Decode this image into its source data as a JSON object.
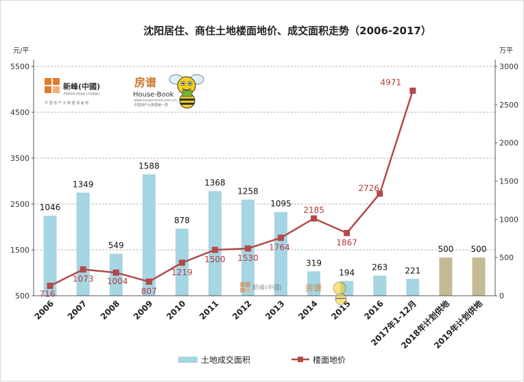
{
  "colors": {
    "bar": "#a6d5e3",
    "bar_plan": "#c4bb95",
    "line": "#b2494a",
    "line_label": "#b03a3a",
    "grid": "#9a9a9a"
  },
  "logos": {
    "fresh_peak_cn": "新峰(中國)",
    "fresh_peak_en": "FRESH PEAK (CHINA)",
    "fresh_peak_sub": "中 国 地 产 大 数 据 领 航 者",
    "house_book_cn": "房谱",
    "house_book_en": "House-Book",
    "house_book_url": "www.house-book.com.cn",
    "house_book_sub": "中国地产大数据第一屏",
    "watermark_fresh_peak": "新峰(中國)",
    "watermark_house_book": "房谱"
  },
  "chart_data": {
    "type": "bar",
    "title": "沈阳居住、商住土地楼面地价、成交面积走势（2006-2017）",
    "ylabel_left": "元/平",
    "ylabel_right": "万平",
    "left_axis": {
      "ylim": [
        500,
        5500
      ],
      "ticks": [
        500,
        1500,
        2500,
        3500,
        4500,
        5500
      ]
    },
    "right_axis": {
      "ylim": [
        0,
        3000
      ],
      "ticks": [
        0,
        500,
        1000,
        1500,
        2000,
        2500,
        3000
      ]
    },
    "grid": true,
    "legend_placement": "bottom",
    "categories": [
      "2006",
      "2007",
      "2008",
      "2009",
      "2010",
      "2011",
      "2012",
      "2013",
      "2014",
      "2015",
      "2016",
      "2017年1-12月",
      "2018年计划供地",
      "2019年计划供地"
    ],
    "series": [
      {
        "name": "土地成交面积",
        "kind": "bar",
        "axis": "right",
        "values": [
          1046,
          1349,
          549,
          1588,
          878,
          1368,
          1258,
          1095,
          319,
          194,
          263,
          221,
          500,
          500
        ],
        "planned_from_index": 12
      },
      {
        "name": "楼面地价",
        "kind": "line",
        "axis": "left",
        "values": [
          716,
          1073,
          1004,
          807,
          1219,
          1500,
          1530,
          1764,
          2185,
          1867,
          2726,
          4971,
          null,
          null
        ]
      }
    ]
  }
}
